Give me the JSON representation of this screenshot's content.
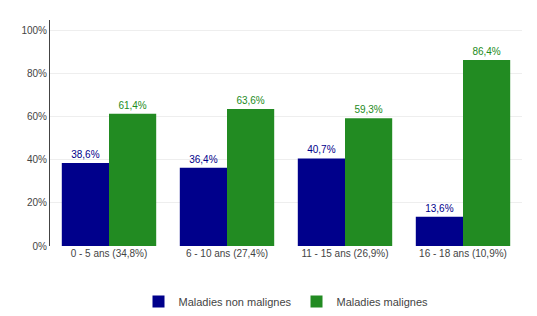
{
  "chart_data": {
    "type": "bar",
    "categories": [
      "0 - 5 ans (34,8%)",
      "6 - 10 ans (27,4%)",
      "11 - 15 ans (26,9%)",
      "16 - 18 ans (10,9%)"
    ],
    "series": [
      {
        "name": "Maladies non malignes",
        "color": "#00008B",
        "values": [
          38.6,
          36.4,
          40.7,
          13.6
        ],
        "value_labels": [
          "38,6%",
          "36,4%",
          "40,7%",
          "13,6%"
        ]
      },
      {
        "name": "Maladies malignes",
        "color": "#228B22",
        "values": [
          61.4,
          63.6,
          59.3,
          86.4
        ],
        "value_labels": [
          "61,4%",
          "63,6%",
          "59,3%",
          "86,4%"
        ]
      }
    ],
    "ylim": [
      0,
      105
    ],
    "yticks": [
      {
        "value": 0,
        "label": "0%"
      },
      {
        "value": 20,
        "label": "20%"
      },
      {
        "value": 40,
        "label": "40%"
      },
      {
        "value": 60,
        "label": "60%"
      },
      {
        "value": 80,
        "label": "80%"
      },
      {
        "value": 100,
        "label": "100%"
      }
    ],
    "grid": true,
    "data_labels": true,
    "legend": "bottom"
  }
}
